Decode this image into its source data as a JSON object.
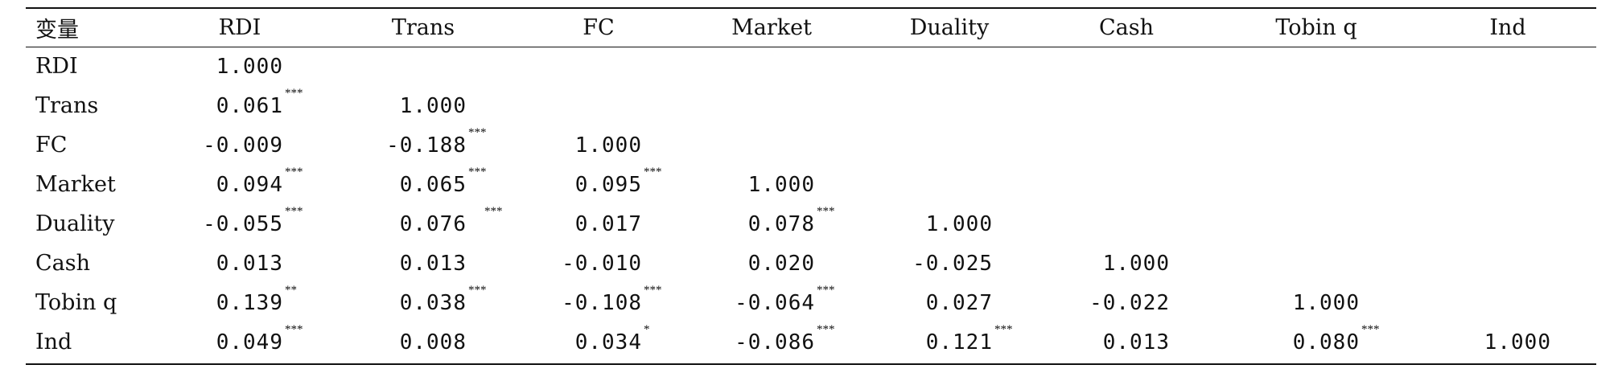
{
  "table": {
    "columns": [
      "变量",
      "RDI",
      "Trans",
      "FC",
      "Market",
      "Duality",
      "Cash",
      "Tobin q",
      "Ind"
    ],
    "rows": [
      {
        "label": "RDI",
        "cells": [
          {
            "v": "1.000",
            "s": ""
          },
          null,
          null,
          null,
          null,
          null,
          null,
          null
        ]
      },
      {
        "label": "Trans",
        "cells": [
          {
            "v": "0.061",
            "s": "***"
          },
          {
            "v": "1.000",
            "s": ""
          },
          null,
          null,
          null,
          null,
          null,
          null
        ]
      },
      {
        "label": "FC",
        "cells": [
          {
            "v": "-0.009",
            "s": ""
          },
          {
            "v": "-0.188",
            "s": "***"
          },
          {
            "v": "1.000",
            "s": ""
          },
          null,
          null,
          null,
          null,
          null
        ]
      },
      {
        "label": "Market",
        "cells": [
          {
            "v": "0.094",
            "s": "***"
          },
          {
            "v": "0.065",
            "s": "***"
          },
          {
            "v": "0.095",
            "s": "***"
          },
          {
            "v": "1.000",
            "s": ""
          },
          null,
          null,
          null,
          null
        ]
      },
      {
        "label": "Duality",
        "cells": [
          {
            "v": "-0.055",
            "s": "***"
          },
          {
            "v": "0.076",
            "s": "***"
          },
          {
            "v": "0.017",
            "s": ""
          },
          {
            "v": "0.078",
            "s": "***"
          },
          {
            "v": "1.000",
            "s": ""
          },
          null,
          null,
          null
        ]
      },
      {
        "label": "Cash",
        "cells": [
          {
            "v": "0.013",
            "s": ""
          },
          {
            "v": "0.013",
            "s": ""
          },
          {
            "v": "-0.010",
            "s": ""
          },
          {
            "v": "0.020",
            "s": ""
          },
          {
            "v": "-0.025",
            "s": ""
          },
          {
            "v": "1.000",
            "s": ""
          },
          null,
          null
        ]
      },
      {
        "label": "Tobin q",
        "cells": [
          {
            "v": "0.139",
            "s": "**"
          },
          {
            "v": "0.038",
            "s": "***"
          },
          {
            "v": "-0.108",
            "s": "***"
          },
          {
            "v": "-0.064",
            "s": "***"
          },
          {
            "v": "0.027",
            "s": ""
          },
          {
            "v": "-0.022",
            "s": ""
          },
          {
            "v": "1.000",
            "s": ""
          },
          null
        ]
      },
      {
        "label": "Ind",
        "cells": [
          {
            "v": "0.049",
            "s": "***"
          },
          {
            "v": "0.008",
            "s": ""
          },
          {
            "v": "0.034",
            "s": "*"
          },
          {
            "v": "-0.086",
            "s": "***"
          },
          {
            "v": "0.121",
            "s": "***"
          },
          {
            "v": "0.013",
            "s": ""
          },
          {
            "v": "0.080",
            "s": "***"
          },
          {
            "v": "1.000",
            "s": ""
          }
        ]
      }
    ]
  }
}
